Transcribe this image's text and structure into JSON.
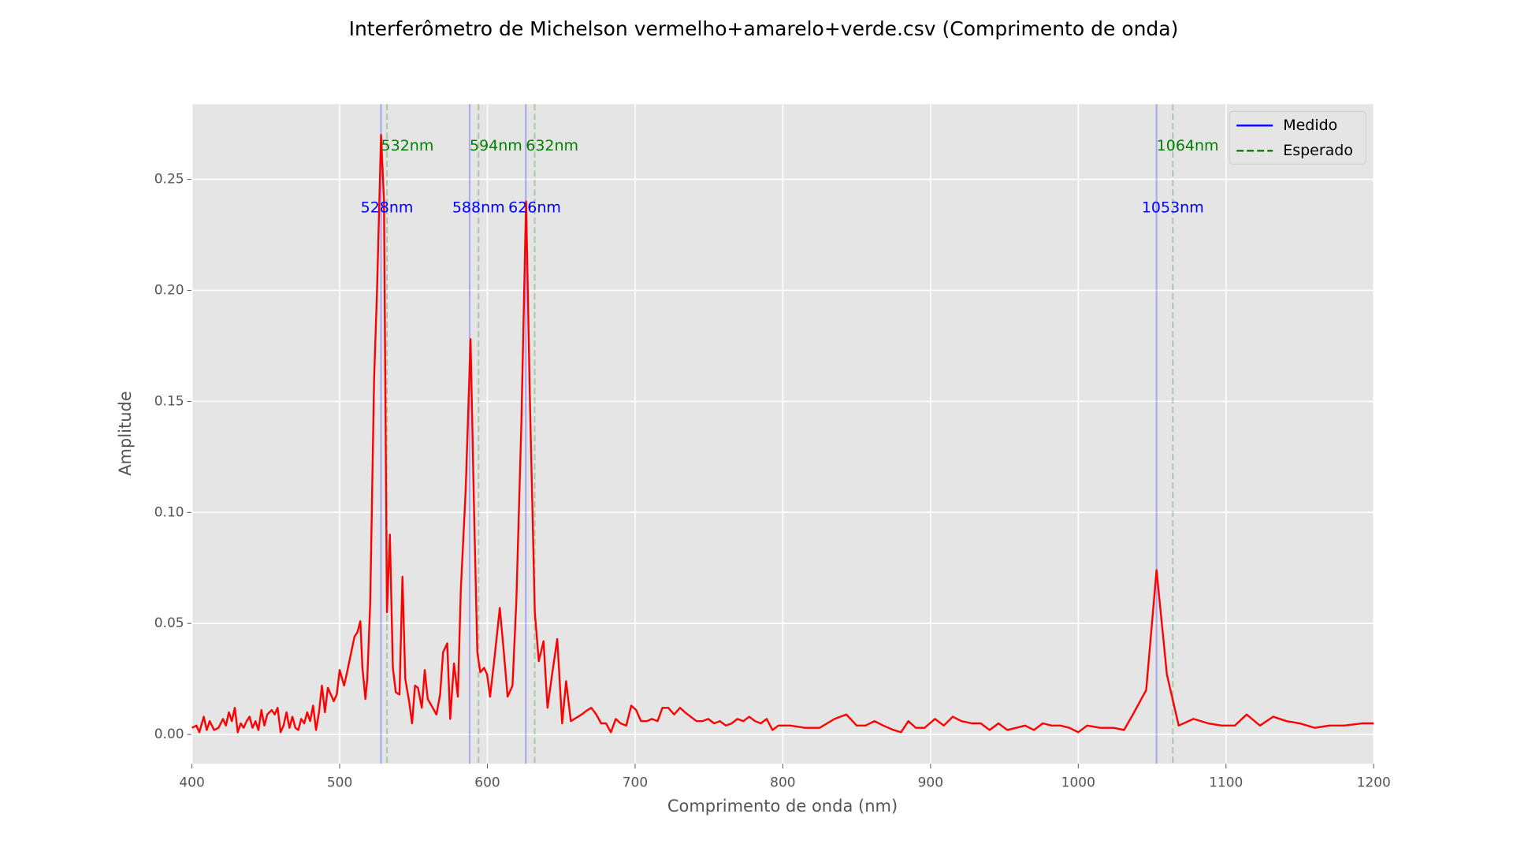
{
  "chart_data": {
    "type": "line",
    "title": "Interferômetro de Michelson vermelho+amarelo+verde.csv (Comprimento de onda)",
    "xlabel": "Comprimento de onda (nm)",
    "ylabel": "Amplitude",
    "xlim": [
      400,
      1200
    ],
    "ylim": [
      -0.0132,
      0.2838
    ],
    "xticks": [
      400,
      500,
      600,
      700,
      800,
      900,
      1000,
      1100,
      1200
    ],
    "yticks": [
      {
        "value": 0,
        "label": "0.00"
      },
      {
        "value": 0.05,
        "label": "0.05"
      },
      {
        "value": 0.1,
        "label": "0.10"
      },
      {
        "value": 0.15,
        "label": "0.15"
      },
      {
        "value": 0.2,
        "label": "0.20"
      },
      {
        "value": 0.25,
        "label": "0.25"
      }
    ],
    "grid": true,
    "series": [
      {
        "color": "#ff0000",
        "x": [
          400,
          403,
          405,
          408,
          410,
          412,
          415,
          418,
          421,
          423,
          425,
          427,
          429,
          431,
          433,
          435,
          437,
          439,
          441,
          443,
          445,
          447,
          449,
          451,
          454,
          456,
          458,
          460,
          462,
          464,
          466,
          468,
          470,
          472,
          474,
          476,
          478,
          480,
          482,
          484,
          486,
          488,
          490,
          492,
          494,
          496,
          498,
          500,
          503,
          505,
          507.5,
          510,
          512,
          514,
          515.4,
          517.4,
          518.7,
          520.7,
          523.3,
          525.3,
          528,
          530,
          532,
          534,
          536,
          538,
          540.5,
          542.5,
          544.4,
          547,
          549,
          551,
          553,
          555.6,
          557.6,
          559.6,
          563,
          565.5,
          568,
          570,
          572.8,
          574.8,
          577.4,
          580,
          582,
          585.3,
          588.6,
          591,
          593.2,
          595.2,
          597.8,
          599.8,
          601.8,
          604.4,
          608.4,
          611,
          613.7,
          617,
          619.6,
          623,
          626.2,
          628.8,
          632.1,
          634.8,
          638,
          640.7,
          644,
          647.3,
          650.6,
          653.3,
          656.5,
          663.8,
          667.8,
          670.4,
          673.7,
          677,
          680.3,
          683.6,
          686.9,
          690.2,
          694,
          697.4,
          700.7,
          704,
          708,
          711.3,
          715.2,
          718.5,
          722.5,
          726.4,
          730.4,
          733.7,
          737.6,
          741.6,
          745.6,
          749.5,
          753.5,
          757.4,
          761.4,
          765.4,
          769.3,
          773.3,
          777.2,
          781.2,
          785.1,
          789.1,
          793,
          797,
          805,
          815,
          825,
          835,
          843,
          850,
          856,
          862,
          868,
          875,
          880,
          885,
          890,
          896,
          903,
          909,
          915,
          921,
          928,
          934,
          940,
          946,
          952,
          958,
          964,
          970,
          976,
          982,
          988,
          994,
          1000,
          1006,
          1015,
          1024,
          1031,
          1037,
          1046,
          1053,
          1060,
          1068,
          1078,
          1088,
          1097,
          1106,
          1114,
          1123,
          1132,
          1141,
          1150,
          1160,
          1170,
          1180,
          1192,
          1200
        ],
        "values": [
          0.003,
          0.004,
          0.001,
          0.008,
          0.002,
          0.006,
          0.002,
          0.003,
          0.007,
          0.004,
          0.01,
          0.006,
          0.012,
          0.001,
          0.005,
          0.003,
          0.006,
          0.008,
          0.003,
          0.006,
          0.002,
          0.011,
          0.004,
          0.009,
          0.011,
          0.009,
          0.012,
          0.001,
          0.004,
          0.01,
          0.003,
          0.008,
          0.003,
          0.002,
          0.007,
          0.005,
          0.01,
          0.006,
          0.013,
          0.002,
          0.01,
          0.022,
          0.01,
          0.021,
          0.018,
          0.015,
          0.018,
          0.029,
          0.022,
          0.028,
          0.036,
          0.044,
          0.046,
          0.051,
          0.03,
          0.016,
          0.025,
          0.06,
          0.16,
          0.2,
          0.27,
          0.24,
          0.055,
          0.09,
          0.03,
          0.019,
          0.018,
          0.071,
          0.025,
          0.015,
          0.005,
          0.022,
          0.021,
          0.012,
          0.029,
          0.016,
          0.012,
          0.009,
          0.018,
          0.037,
          0.041,
          0.007,
          0.032,
          0.017,
          0.065,
          0.11,
          0.178,
          0.1,
          0.037,
          0.028,
          0.03,
          0.027,
          0.017,
          0.032,
          0.057,
          0.038,
          0.017,
          0.022,
          0.06,
          0.14,
          0.24,
          0.15,
          0.055,
          0.033,
          0.042,
          0.012,
          0.028,
          0.043,
          0.005,
          0.024,
          0.006,
          0.009,
          0.011,
          0.012,
          0.009,
          0.005,
          0.005,
          0.001,
          0.007,
          0.005,
          0.004,
          0.013,
          0.011,
          0.006,
          0.006,
          0.007,
          0.006,
          0.012,
          0.012,
          0.009,
          0.012,
          0.01,
          0.008,
          0.006,
          0.006,
          0.007,
          0.005,
          0.006,
          0.004,
          0.005,
          0.007,
          0.006,
          0.008,
          0.006,
          0.005,
          0.007,
          0.002,
          0.004,
          0.004,
          0.003,
          0.003,
          0.007,
          0.009,
          0.004,
          0.004,
          0.006,
          0.004,
          0.002,
          0.001,
          0.006,
          0.003,
          0.003,
          0.007,
          0.004,
          0.008,
          0.006,
          0.005,
          0.005,
          0.002,
          0.005,
          0.002,
          0.003,
          0.004,
          0.002,
          0.005,
          0.004,
          0.004,
          0.003,
          0.001,
          0.004,
          0.003,
          0.003,
          0.002,
          0.009,
          0.02,
          0.074,
          0.027,
          0.004,
          0.007,
          0.005,
          0.004,
          0.004,
          0.009,
          0.004,
          0.008,
          0.006,
          0.005,
          0.003,
          0.004,
          0.004,
          0.005,
          0.005
        ]
      }
    ],
    "measured": [
      {
        "value": 528,
        "label": "528nm"
      },
      {
        "value": 588,
        "label": "588nm"
      },
      {
        "value": 626,
        "label": "626nm"
      },
      {
        "value": 1053,
        "label": "1053nm"
      }
    ],
    "expected": [
      {
        "value": 532,
        "label": "532nm"
      },
      {
        "value": 594,
        "label": "594nm"
      },
      {
        "value": 632,
        "label": "632nm"
      },
      {
        "value": 1064,
        "label": "1064nm"
      }
    ],
    "measured_color": "#0000ff",
    "expected_color": "#008000",
    "measured_label_y": 0.237,
    "expected_label_y": 0.265,
    "legend": [
      {
        "label": "Medido",
        "color": "#0000ff",
        "dashed": false
      },
      {
        "label": "Esperado",
        "color": "#008000",
        "dashed": true
      }
    ],
    "legend_position": "upper right"
  }
}
